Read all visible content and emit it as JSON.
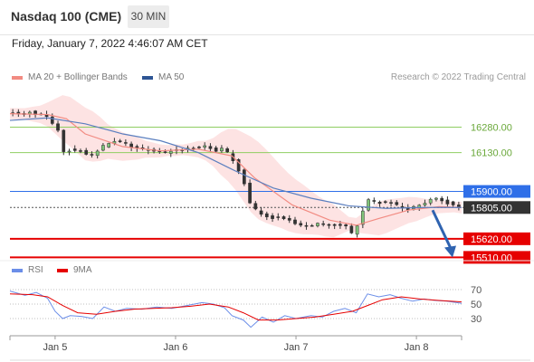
{
  "header": {
    "title": "Nasdaq 100 (CME)",
    "timeframe": "30 MIN",
    "datetime": "Friday, January 7, 2022 4:46:07 AM CET"
  },
  "legend": {
    "ma_bb": "MA 20 + Bollinger Bands",
    "ma50": "MA 50",
    "rsi": "RSI",
    "rsi_ma": "9MA",
    "copyright": "Research © 2022 Trading Central"
  },
  "colors": {
    "ma20": "#f28b82",
    "bb_fill": "#fde0e0",
    "ma50": "#5b7fbf",
    "resistance": "#8fce62",
    "pivot": "#2f6fe8",
    "support": "#e60000",
    "current": "#333333",
    "rsi": "#6b8ee8",
    "rsi_ma": "#e60000",
    "arrow": "#2f63b0"
  },
  "chart_data": {
    "type": "candlestick",
    "instrument": "Nasdaq 100 (CME)",
    "interval": "30 MIN",
    "x_ticks": [
      "Jan 5",
      "Jan 6",
      "Jan 7",
      "Jan 8"
    ],
    "ylim": [
      15480,
      16390
    ],
    "levels": [
      {
        "label": "16280.00",
        "value": 16280,
        "kind": "resistance"
      },
      {
        "label": "16130.00",
        "value": 16130,
        "kind": "resistance"
      },
      {
        "label": "15900.00",
        "value": 15900,
        "kind": "pivot"
      },
      {
        "label": "15805.00",
        "value": 15805,
        "kind": "current"
      },
      {
        "label": "15620.00",
        "value": 15620,
        "kind": "support"
      },
      {
        "label": "15510.00",
        "value": 15510,
        "kind": "support"
      }
    ],
    "price_path": [
      [
        0,
        16370
      ],
      [
        8,
        16355
      ],
      [
        12,
        16370
      ],
      [
        16,
        16350
      ],
      [
        18,
        16360
      ],
      [
        22,
        16330
      ],
      [
        28,
        16250
      ],
      [
        30,
        16130
      ],
      [
        34,
        16150
      ],
      [
        38,
        16135
      ],
      [
        40,
        16150
      ],
      [
        44,
        16100
      ],
      [
        46,
        16120
      ],
      [
        50,
        16160
      ],
      [
        54,
        16190
      ],
      [
        58,
        16205
      ],
      [
        62,
        16185
      ],
      [
        66,
        16160
      ],
      [
        72,
        16145
      ],
      [
        78,
        16140
      ],
      [
        84,
        16130
      ],
      [
        92,
        16145
      ],
      [
        100,
        16160
      ],
      [
        106,
        16165
      ],
      [
        110,
        16140
      ],
      [
        114,
        16155
      ],
      [
        118,
        16120
      ],
      [
        122,
        16050
      ],
      [
        126,
        15950
      ],
      [
        128,
        15850
      ],
      [
        132,
        15790
      ],
      [
        136,
        15760
      ],
      [
        140,
        15745
      ],
      [
        146,
        15750
      ],
      [
        150,
        15730
      ],
      [
        156,
        15700
      ],
      [
        160,
        15690
      ],
      [
        164,
        15715
      ],
      [
        170,
        15700
      ],
      [
        176,
        15700
      ],
      [
        180,
        15690
      ],
      [
        184,
        15640
      ],
      [
        188,
        15760
      ],
      [
        192,
        15850
      ],
      [
        196,
        15830
      ],
      [
        200,
        15840
      ],
      [
        204,
        15830
      ],
      [
        208,
        15810
      ],
      [
        212,
        15790
      ],
      [
        216,
        15805
      ],
      [
        220,
        15820
      ],
      [
        224,
        15850
      ],
      [
        228,
        15860
      ],
      [
        232,
        15840
      ],
      [
        236,
        15825
      ],
      [
        240,
        15805
      ]
    ],
    "ma50_path": [
      [
        0,
        16320
      ],
      [
        20,
        16335
      ],
      [
        40,
        16300
      ],
      [
        60,
        16240
      ],
      [
        80,
        16200
      ],
      [
        100,
        16130
      ],
      [
        120,
        16020
      ],
      [
        140,
        15920
      ],
      [
        160,
        15860
      ],
      [
        180,
        15815
      ],
      [
        200,
        15800
      ],
      [
        220,
        15805
      ],
      [
        240,
        15805
      ]
    ],
    "ma20_path": [
      [
        0,
        16360
      ],
      [
        20,
        16355
      ],
      [
        30,
        16330
      ],
      [
        40,
        16240
      ],
      [
        60,
        16165
      ],
      [
        80,
        16140
      ],
      [
        100,
        16150
      ],
      [
        118,
        16110
      ],
      [
        130,
        15980
      ],
      [
        150,
        15820
      ],
      [
        170,
        15730
      ],
      [
        184,
        15700
      ],
      [
        196,
        15740
      ],
      [
        212,
        15790
      ],
      [
        228,
        15810
      ],
      [
        240,
        15805
      ]
    ],
    "forecast": {
      "from": 15805,
      "to": 15520
    },
    "rsi": {
      "ylim": [
        15,
        80
      ],
      "ticks": [
        70,
        50,
        30
      ],
      "rsi_path": [
        [
          0,
          68
        ],
        [
          8,
          62
        ],
        [
          14,
          66
        ],
        [
          20,
          58
        ],
        [
          24,
          40
        ],
        [
          28,
          30
        ],
        [
          32,
          34
        ],
        [
          38,
          33
        ],
        [
          44,
          30
        ],
        [
          50,
          46
        ],
        [
          56,
          40
        ],
        [
          62,
          44
        ],
        [
          70,
          43
        ],
        [
          78,
          46
        ],
        [
          86,
          44
        ],
        [
          94,
          48
        ],
        [
          102,
          52
        ],
        [
          108,
          50
        ],
        [
          114,
          45
        ],
        [
          118,
          34
        ],
        [
          124,
          28
        ],
        [
          128,
          18
        ],
        [
          134,
          32
        ],
        [
          140,
          25
        ],
        [
          146,
          34
        ],
        [
          152,
          30
        ],
        [
          160,
          34
        ],
        [
          166,
          32
        ],
        [
          172,
          40
        ],
        [
          178,
          44
        ],
        [
          184,
          38
        ],
        [
          190,
          64
        ],
        [
          196,
          60
        ],
        [
          202,
          63
        ],
        [
          208,
          58
        ],
        [
          214,
          54
        ],
        [
          220,
          57
        ],
        [
          226,
          55
        ],
        [
          232,
          54
        ],
        [
          240,
          51
        ]
      ],
      "rsi_ma_path": [
        [
          0,
          64
        ],
        [
          12,
          63
        ],
        [
          20,
          60
        ],
        [
          28,
          48
        ],
        [
          36,
          38
        ],
        [
          46,
          36
        ],
        [
          56,
          40
        ],
        [
          66,
          43
        ],
        [
          76,
          44
        ],
        [
          86,
          45
        ],
        [
          96,
          47
        ],
        [
          106,
          50
        ],
        [
          116,
          46
        ],
        [
          124,
          38
        ],
        [
          132,
          28
        ],
        [
          142,
          28
        ],
        [
          152,
          30
        ],
        [
          162,
          32
        ],
        [
          172,
          36
        ],
        [
          182,
          40
        ],
        [
          190,
          48
        ],
        [
          198,
          56
        ],
        [
          208,
          60
        ],
        [
          218,
          57
        ],
        [
          228,
          55
        ],
        [
          240,
          53
        ]
      ]
    }
  }
}
